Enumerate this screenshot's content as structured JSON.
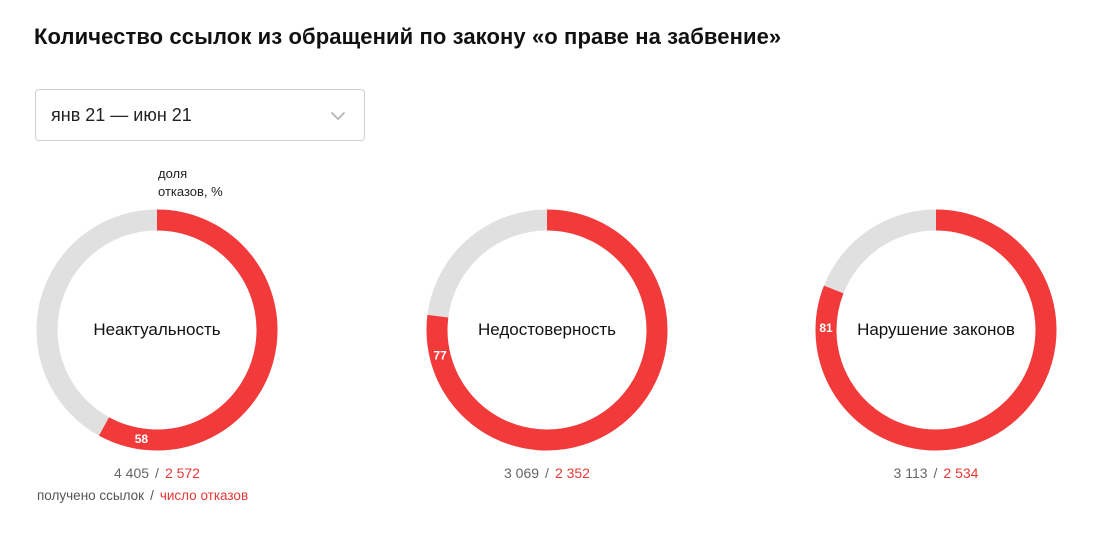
{
  "title": "Количество ссылок из обращений по закону «о праве на забвение»",
  "period_select": {
    "value": "янв 21 — июн 21"
  },
  "share_caption": {
    "line1": "доля",
    "line2": "отказов, %"
  },
  "legend": {
    "received": "получено ссылок",
    "separator": "/",
    "rejected": "число отказов"
  },
  "colors": {
    "rejected": "#f23a3a",
    "rest": "#e0e0e0",
    "accent_text": "#e53935"
  },
  "chart_data": {
    "type": "pie",
    "title": "Количество ссылок из обращений по закону «о праве на забвение»",
    "unit": "%",
    "charts": [
      {
        "label": "Неактуальность",
        "rejection_share": 58,
        "received": "4 405",
        "rejected": "2 572"
      },
      {
        "label": "Недостоверность",
        "rejection_share": 77,
        "received": "3 069",
        "rejected": "2 352"
      },
      {
        "label": "Нарушение законов",
        "rejection_share": 81,
        "received": "3 113",
        "rejected": "2 534"
      }
    ]
  }
}
